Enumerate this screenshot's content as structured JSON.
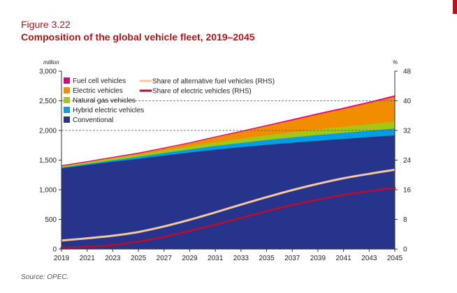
{
  "figure_label": "Figure 3.22",
  "title": "Composition of the global vehicle fleet, 2019–2045",
  "source": "Source: OPEC.",
  "chart_data": {
    "type": "area",
    "stacked": true,
    "x": [
      2019,
      2021,
      2023,
      2025,
      2027,
      2029,
      2031,
      2033,
      2035,
      2037,
      2039,
      2041,
      2043,
      2045
    ],
    "x_ticks": [
      "2019",
      "2021",
      "2023",
      "2025",
      "2027",
      "2029",
      "2031",
      "2033",
      "2035",
      "2037",
      "2039",
      "2041",
      "2043",
      "2045"
    ],
    "left_axis": {
      "unit": "million",
      "ylim": [
        0,
        3000
      ],
      "ticks": [
        "0",
        "500",
        "1,000",
        "1,500",
        "2,000",
        "2,500",
        "3,000"
      ],
      "tick_values": [
        0,
        500,
        1000,
        1500,
        2000,
        2500,
        3000
      ]
    },
    "right_axis": {
      "unit": "%",
      "ylim": [
        0,
        48
      ],
      "ticks": [
        "0",
        "8",
        "16",
        "24",
        "32",
        "40",
        "48"
      ],
      "tick_values": [
        0,
        8,
        16,
        24,
        32,
        40,
        48
      ]
    },
    "grid": "dashed at 2,000 and 2,500 million",
    "legend_position": "top-left",
    "series": [
      {
        "name": "Conventional",
        "color": "#27348b",
        "axis": "left",
        "values": [
          1365,
          1420,
          1475,
          1525,
          1580,
          1630,
          1680,
          1720,
          1760,
          1795,
          1830,
          1860,
          1890,
          1920
        ]
      },
      {
        "name": "Hybrid electric vehicles",
        "color": "#009fe3",
        "axis": "left",
        "values": [
          12,
          18,
          25,
          33,
          42,
          52,
          62,
          72,
          82,
          90,
          97,
          103,
          109,
          115
        ]
      },
      {
        "name": "Natural gas vehicles",
        "color": "#a5c712",
        "axis": "left",
        "values": [
          25,
          30,
          35,
          40,
          47,
          55,
          63,
          71,
          79,
          87,
          95,
          103,
          111,
          120
        ]
      },
      {
        "name": "Electric vehicles",
        "color": "#f28c00",
        "axis": "left",
        "values": [
          4,
          7,
          12,
          20,
          35,
          55,
          85,
          120,
          160,
          205,
          255,
          305,
          360,
          420
        ]
      },
      {
        "name": "Fuel cell vehicles",
        "color": "#e6007e",
        "axis": "left",
        "values": [
          0.1,
          0.2,
          0.3,
          0.5,
          1,
          1.5,
          2,
          3,
          4,
          5,
          6,
          7,
          8,
          10
        ]
      },
      {
        "name": "Share of alternative fuel vehicles (RHS)",
        "type": "line",
        "color": "#f7c89b",
        "axis": "right",
        "values": [
          2.3,
          2.9,
          3.6,
          4.6,
          6.1,
          7.9,
          9.9,
          12.0,
          14.0,
          15.9,
          17.6,
          19.1,
          20.3,
          21.4
        ]
      },
      {
        "name": "Share of electric vehicles (RHS)",
        "type": "line",
        "color": "#a5123a",
        "axis": "right",
        "values": [
          0.3,
          0.6,
          1.1,
          2.0,
          3.3,
          4.9,
          6.6,
          8.4,
          10.2,
          11.9,
          13.3,
          14.6,
          15.6,
          16.5
        ]
      }
    ]
  }
}
